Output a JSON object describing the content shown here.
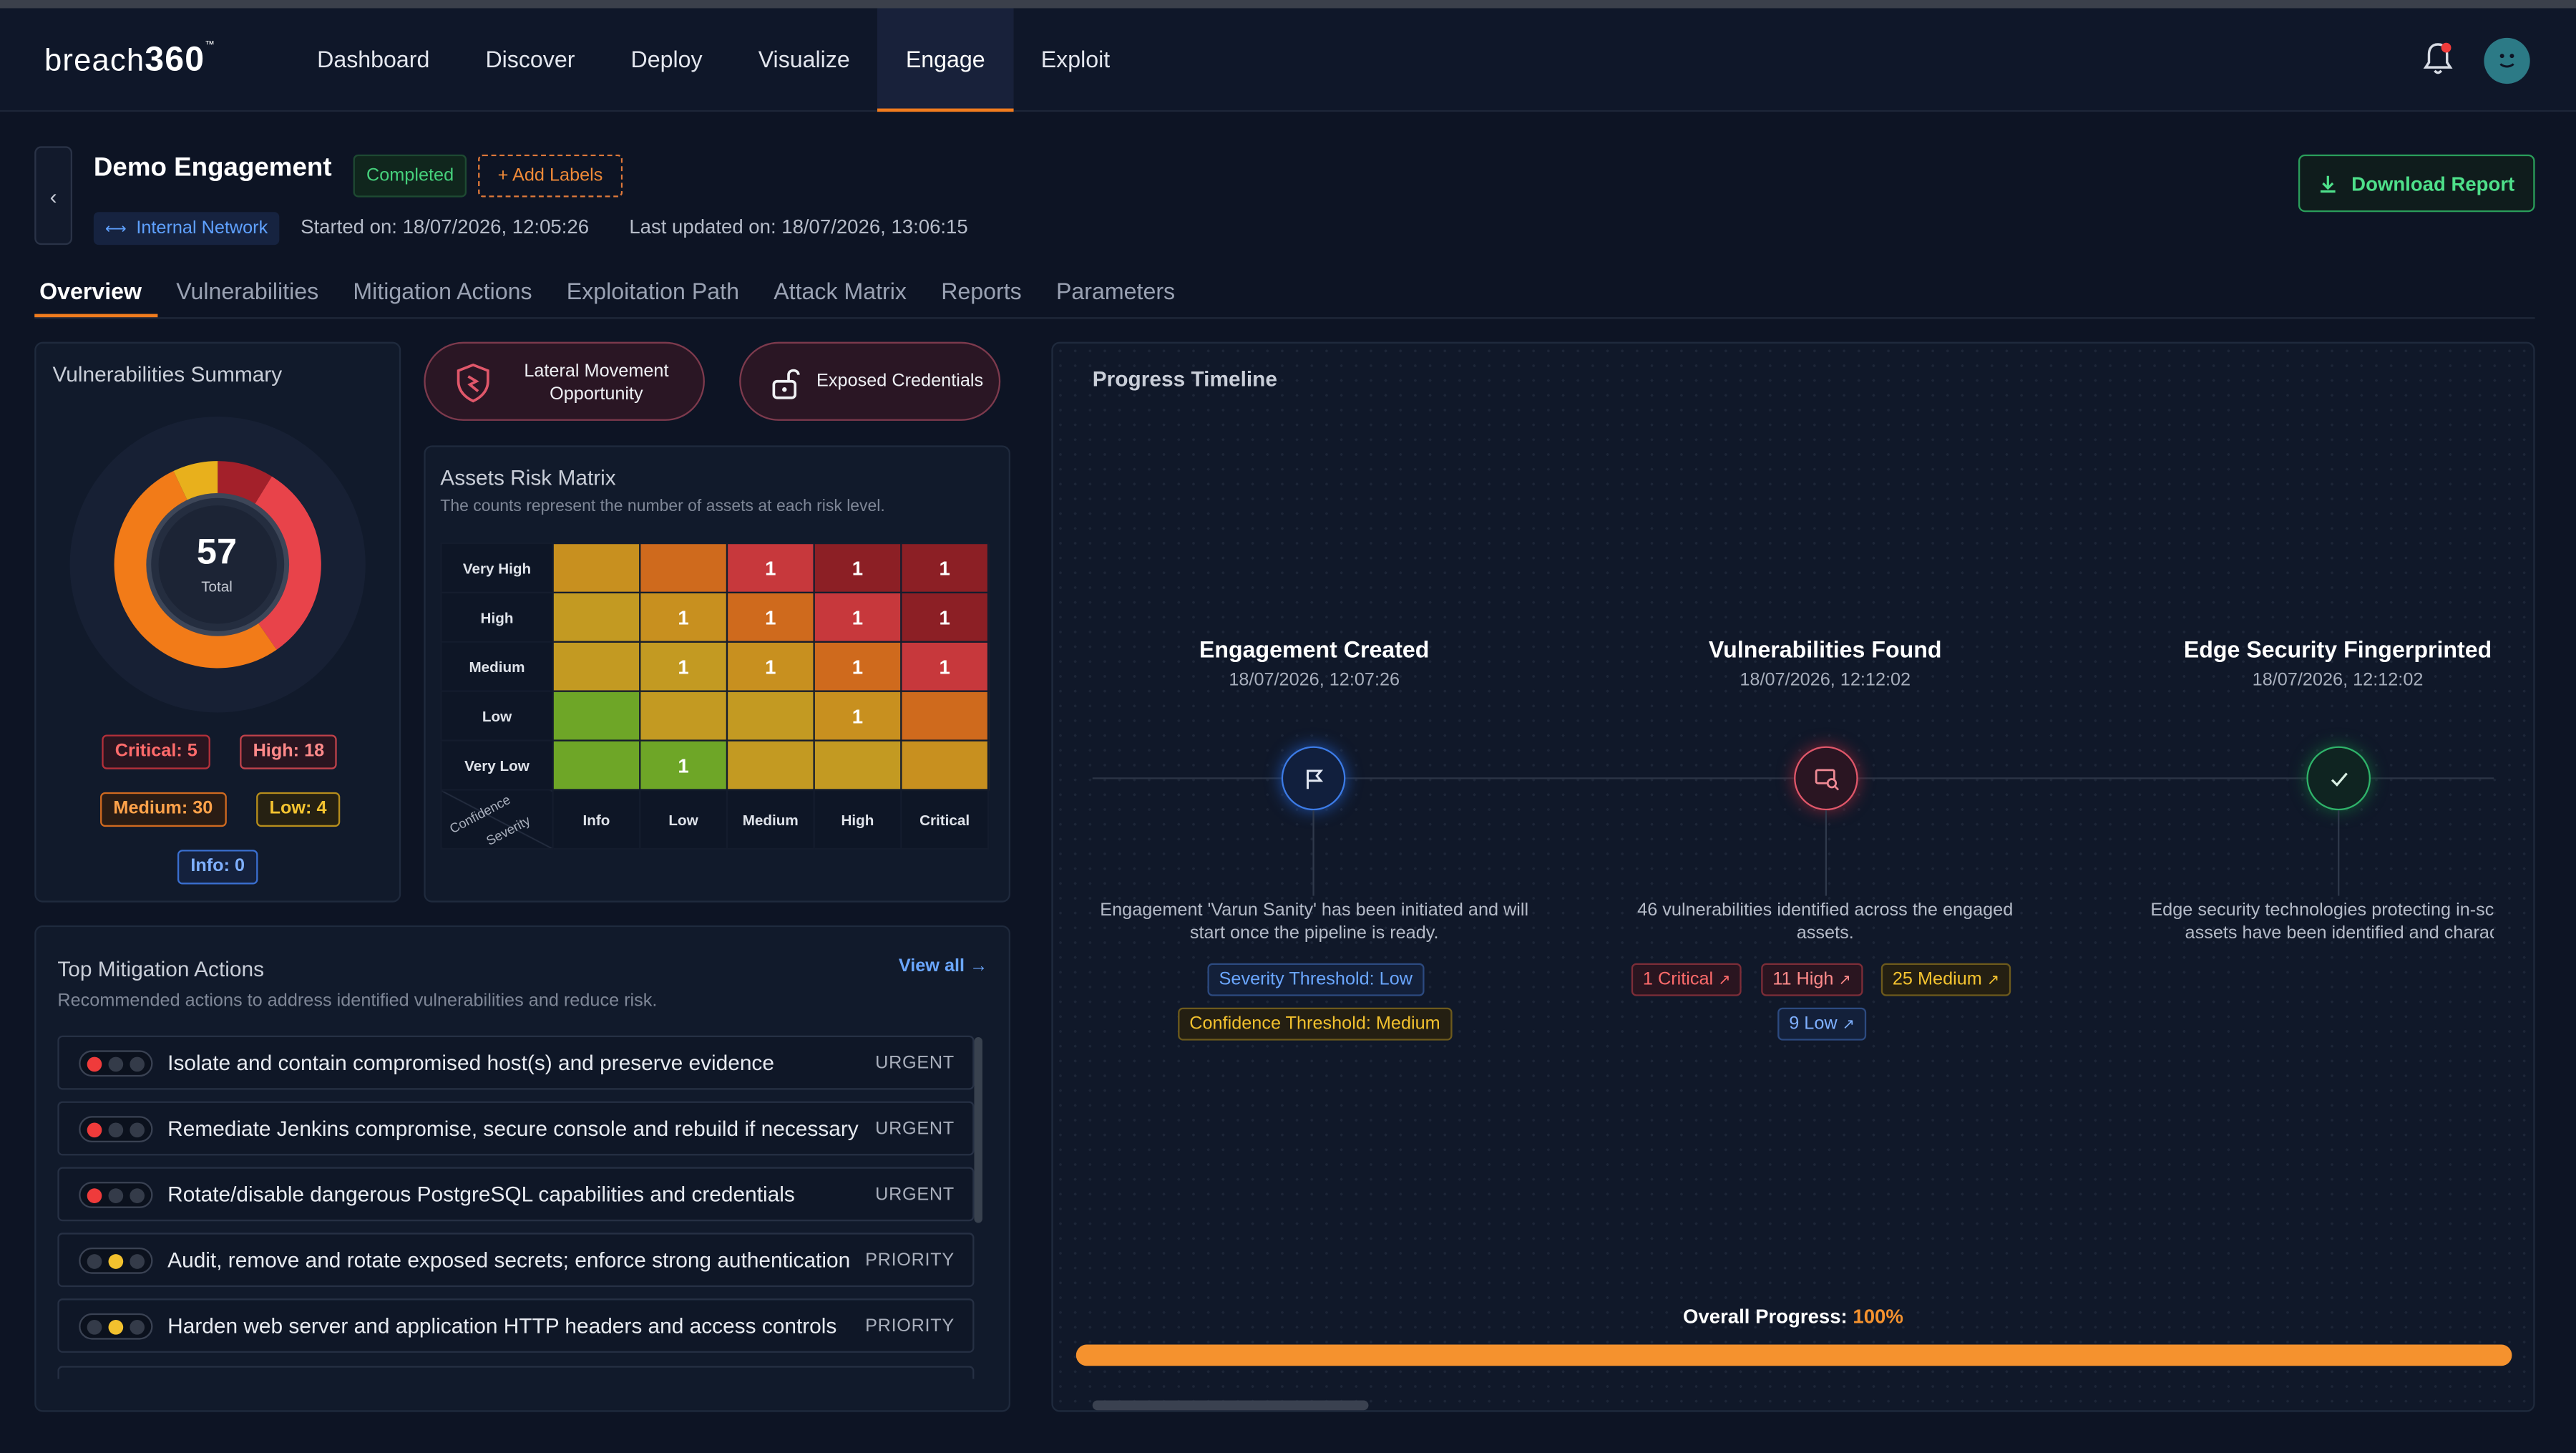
{
  "app": {
    "logo_text": "breach",
    "logo_num": "360",
    "logo_tm": "™"
  },
  "nav": {
    "items": [
      "Dashboard",
      "Discover",
      "Deploy",
      "Visualize",
      "Engage",
      "Exploit"
    ],
    "active": "Engage"
  },
  "engagement": {
    "title": "Demo Engagement",
    "status": "Completed",
    "add_labels": "+ Add Labels",
    "network": "Internal Network",
    "started": "Started on: 18/07/2026, 12:05:26",
    "updated": "Last updated on: 18/07/2026, 13:06:15",
    "download_label": "Download Report"
  },
  "tabs": [
    "Overview",
    "Vulnerabilities",
    "Mitigation Actions",
    "Exploitation Path",
    "Attack Matrix",
    "Reports",
    "Parameters"
  ],
  "vuln_summary": {
    "title": "Vulnerabilities Summary",
    "total": "57",
    "total_label": "Total",
    "critical": "Critical: 5",
    "high": "High: 18",
    "medium": "Medium: 30",
    "low": "Low: 4",
    "info": "Info: 0"
  },
  "chart_data": {
    "type": "pie",
    "title": "Vulnerabilities Summary",
    "categories": [
      "Critical",
      "High",
      "Medium",
      "Low",
      "Info"
    ],
    "values": [
      5,
      18,
      30,
      4,
      0
    ],
    "colors": [
      "#a3202a",
      "#e8434a",
      "#f27b18",
      "#e8b01c",
      "#3b82f6"
    ],
    "total": 57
  },
  "opportunities": {
    "lateral": "Lateral Movement Opportunity",
    "credentials": "Exposed Credentials"
  },
  "risk_matrix": {
    "title": "Assets Risk Matrix",
    "subtitle": "The counts represent the number of assets at each risk level.",
    "rows": [
      "Very High",
      "High",
      "Medium",
      "Low",
      "Very Low"
    ],
    "cols": [
      "Info",
      "Low",
      "Medium",
      "High",
      "Critical"
    ],
    "corner_confidence": "Confidence",
    "corner_severity": "Severity",
    "values": [
      [
        "",
        "",
        "1",
        "1",
        "1"
      ],
      [
        "",
        "1",
        "1",
        "1",
        "1"
      ],
      [
        "",
        "1",
        "1",
        "1",
        "1"
      ],
      [
        "",
        "",
        "",
        "1",
        ""
      ],
      [
        "",
        "1",
        "",
        "",
        ""
      ]
    ],
    "colors": [
      [
        "#c8901f",
        "#cf6a1d",
        "#c7383c",
        "#8c1f25",
        "#8c1f25"
      ],
      [
        "#c39a22",
        "#c8901f",
        "#cf6a1d",
        "#c7383c",
        "#8c1f25"
      ],
      [
        "#c39a22",
        "#c39a22",
        "#c8901f",
        "#cf6a1d",
        "#c7383c"
      ],
      [
        "#6ea627",
        "#c39a22",
        "#c39a22",
        "#c8901f",
        "#cf6a1d"
      ],
      [
        "#6ea627",
        "#6ea627",
        "#c39a22",
        "#c39a22",
        "#c8901f"
      ]
    ]
  },
  "mitigation": {
    "title": "Top Mitigation Actions",
    "subtitle": "Recommended actions to address identified vulnerabilities and reduce risk.",
    "view_all": "View all",
    "items": [
      {
        "text": "Isolate and contain compromised host(s) and preserve evidence",
        "priority": "URGENT",
        "light": "red"
      },
      {
        "text": "Remediate Jenkins compromise, secure console and rebuild if necessary",
        "priority": "URGENT",
        "light": "red"
      },
      {
        "text": "Rotate/disable dangerous PostgreSQL capabilities and credentials",
        "priority": "URGENT",
        "light": "red"
      },
      {
        "text": "Audit, remove and rotate exposed secrets; enforce strong authentication",
        "priority": "PRIORITY",
        "light": "yellow"
      },
      {
        "text": "Harden web server and application HTTP headers and access controls",
        "priority": "PRIORITY",
        "light": "yellow"
      }
    ]
  },
  "timeline": {
    "title": "Progress Timeline",
    "events": [
      {
        "title": "Engagement Created",
        "date": "18/07/2026, 12:07:26",
        "desc1": "Engagement 'Varun Sanity' has been initiated and will",
        "desc2": "start once the pipeline is ready."
      },
      {
        "title": "Vulnerabilities Found",
        "date": "18/07/2026, 12:12:02",
        "desc1": "46 vulnerabilities identified across the engaged",
        "desc2": "assets."
      },
      {
        "title": "Edge Security Fingerprinted",
        "date": "18/07/2026, 12:12:02",
        "desc1": "Edge security technologies protecting in-sc",
        "desc2": "assets have been identified and characteriz"
      }
    ],
    "tags": {
      "severity": "Severity Threshold: Low",
      "confidence": "Confidence Threshold: Medium",
      "critical": "1 Critical",
      "high": "11 High",
      "medium": "25 Medium",
      "low": "9 Low"
    },
    "overall_label": "Overall Progress:",
    "overall_value": "100%",
    "progress": 1.0
  }
}
